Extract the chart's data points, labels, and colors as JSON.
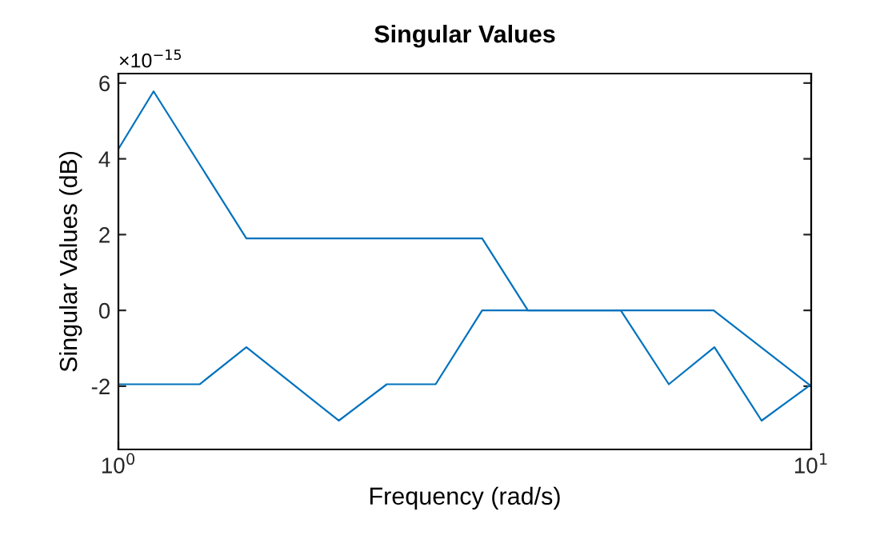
{
  "chart_data": {
    "type": "line",
    "title": "Singular Values",
    "xlabel": "Frequency (rad/s)",
    "ylabel": "Singular Values (dB)",
    "log": "x",
    "annotations": [
      "×10$^{−15}$"
    ],
    "series": [
      {
        "color": "#0072bd",
        "x": [
          1,
          1.124,
          1.53,
          3.35,
          3.9,
          7.23,
          10
        ],
        "values": [
          4.26,
          5.78,
          1.9,
          1.9,
          0,
          0,
          -2
        ]
      },
      {
        "color": "#0072bd",
        "x": [
          1,
          1.31,
          1.53,
          2.08,
          2.44,
          2.87,
          3.35,
          5.31,
          6.23,
          7.25,
          8.48,
          10
        ],
        "values": [
          -1.95,
          -1.95,
          -0.97,
          -2.91,
          -1.95,
          -1.95,
          0,
          0,
          -1.95,
          -0.97,
          -2.91,
          -1.95
        ]
      }
    ],
    "xlim": [
      1,
      10
    ],
    "xticks": [
      {
        "value": 1,
        "label": "10$^{0}$"
      },
      {
        "value": 10,
        "label": "10$^{1}$"
      }
    ],
    "ylim": [
      -3.67,
      6.25
    ],
    "yticks": [
      -2,
      0,
      2,
      4,
      6
    ],
    "grid": false,
    "legend": false,
    "marker": "none",
    "line_style": "solid"
  }
}
